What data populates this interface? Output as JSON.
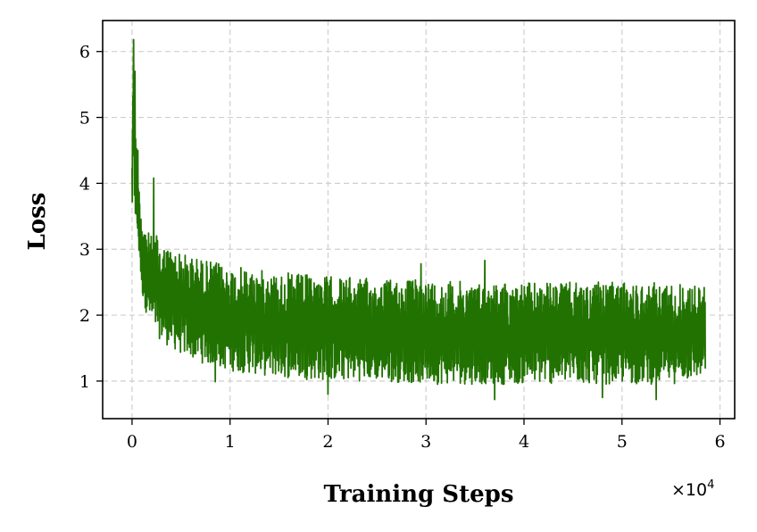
{
  "chart_data": {
    "type": "line",
    "title": "",
    "xlabel": "Training Steps",
    "ylabel": "Loss",
    "x_offset_label": "×10",
    "x_offset_exponent": "4",
    "xlim": [
      -0.3,
      6.15
    ],
    "ylim": [
      0.43,
      6.47
    ],
    "xticks": [
      0,
      1,
      2,
      3,
      4,
      5,
      6
    ],
    "xtick_labels": [
      "0",
      "1",
      "2",
      "3",
      "4",
      "5",
      "6"
    ],
    "yticks": [
      1,
      2,
      3,
      4,
      5,
      6
    ],
    "ytick_labels": [
      "1",
      "2",
      "3",
      "4",
      "5",
      "6"
    ],
    "grid": true,
    "legend": "none",
    "series": [
      {
        "color": "#217200",
        "x_unit_note": "x values in units of 10^4 steps",
        "envelope": {
          "x": [
            0.0,
            0.01,
            0.02,
            0.03,
            0.05,
            0.07,
            0.1,
            0.15,
            0.2,
            0.3,
            0.5,
            0.75,
            1.0,
            1.5,
            2.0,
            2.5,
            3.0,
            3.5,
            4.0,
            4.5,
            5.0,
            5.5,
            5.85
          ],
          "upper": [
            4.6,
            6.2,
            5.8,
            5.0,
            4.5,
            4.0,
            3.6,
            3.3,
            3.2,
            3.1,
            2.95,
            2.85,
            2.75,
            2.65,
            2.6,
            2.55,
            2.55,
            2.5,
            2.5,
            2.5,
            2.5,
            2.5,
            2.45
          ],
          "lower": [
            3.4,
            3.8,
            3.6,
            3.4,
            3.2,
            2.9,
            2.3,
            2.0,
            1.8,
            1.6,
            1.4,
            1.25,
            1.15,
            1.05,
            1.0,
            1.0,
            0.95,
            0.95,
            0.95,
            0.95,
            0.95,
            0.95,
            1.05
          ]
        },
        "spikes": [
          {
            "x": 0.015,
            "y": 6.18
          },
          {
            "x": 0.03,
            "y": 5.7
          },
          {
            "x": 0.06,
            "y": 4.5
          },
          {
            "x": 0.22,
            "y": 4.08
          },
          {
            "x": 0.25,
            "y": 3.2
          },
          {
            "x": 3.6,
            "y": 2.83
          },
          {
            "x": 2.95,
            "y": 2.78
          },
          {
            "x": 0.85,
            "y": 0.99
          },
          {
            "x": 3.7,
            "y": 0.72
          },
          {
            "x": 5.35,
            "y": 0.72
          },
          {
            "x": 4.8,
            "y": 0.75
          },
          {
            "x": 2.0,
            "y": 0.8
          }
        ],
        "final_x": 5.85
      }
    ]
  }
}
